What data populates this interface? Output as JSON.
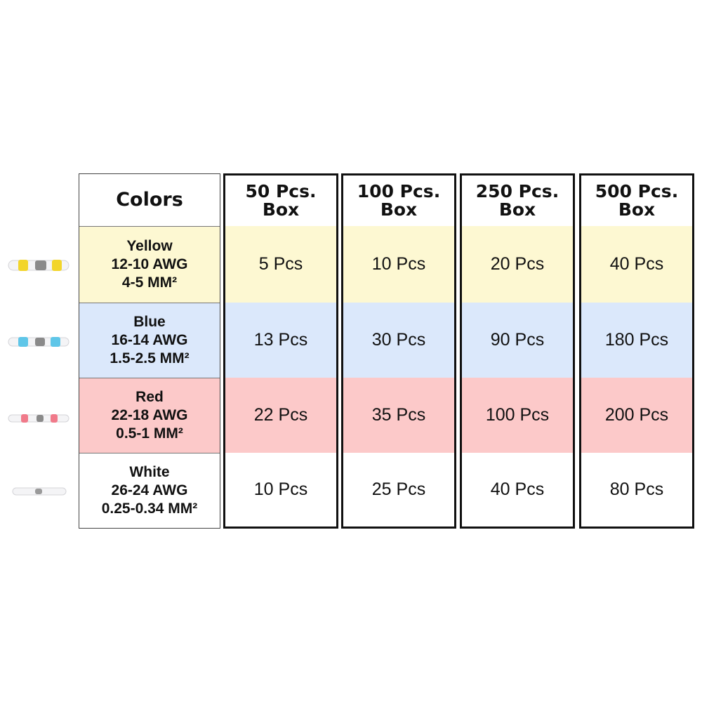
{
  "table": {
    "header_label": "Colors",
    "rows": [
      {
        "color": "Yellow",
        "awg": "12-10 AWG",
        "mm": "4-5 MM²",
        "band_color": "#f2d52a"
      },
      {
        "color": "Blue",
        "awg": "16-14 AWG",
        "mm": "1.5-2.5 MM²",
        "band_color": "#5fc6e8"
      },
      {
        "color": "Red",
        "awg": "22-18 AWG",
        "mm": "0.5-1 MM²",
        "band_color": "#f07a8a"
      },
      {
        "color": "White",
        "awg": "26-24 AWG",
        "mm": "0.25-0.34 MM²",
        "band_color": "#e8e8ec"
      }
    ],
    "boxes": [
      {
        "header": "50 Pcs.\nBox",
        "values": [
          "5 Pcs",
          "13 Pcs",
          "22 Pcs",
          "10 Pcs"
        ]
      },
      {
        "header": "100 Pcs.\nBox",
        "values": [
          "10 Pcs",
          "30 Pcs",
          "35 Pcs",
          "25 Pcs"
        ]
      },
      {
        "header": "250 Pcs.\nBox",
        "values": [
          "20 Pcs",
          "90 Pcs",
          "100 Pcs",
          "40 Pcs"
        ]
      },
      {
        "header": "500 Pcs.\nBox",
        "values": [
          "40 Pcs",
          "180 Pcs",
          "200 Pcs",
          "80 Pcs"
        ]
      }
    ],
    "row_colors": [
      "#fdf8d2",
      "#dbe8fb",
      "#fcc9c9",
      "#ffffff"
    ]
  }
}
